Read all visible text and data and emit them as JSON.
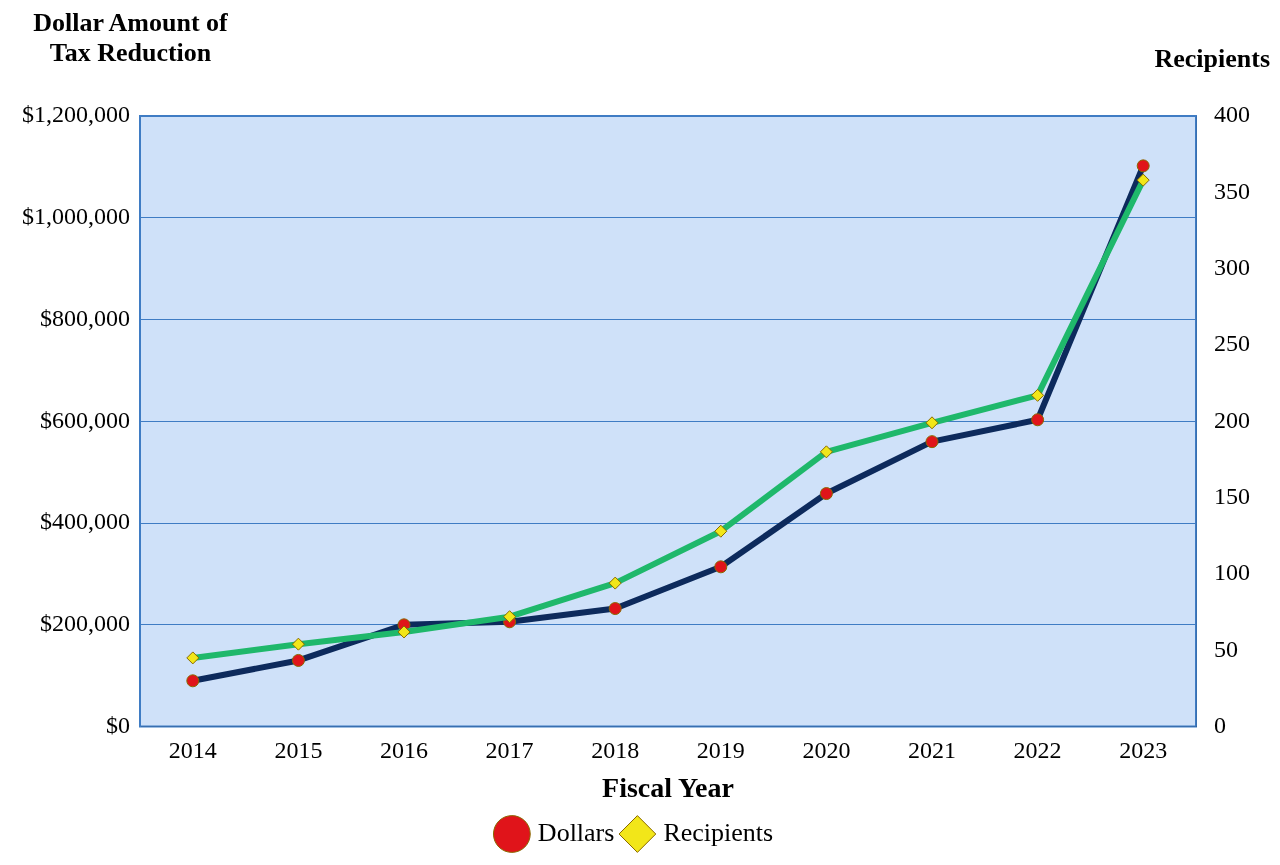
{
  "chart_data": {
    "type": "line",
    "xlabel": "Fiscal Year",
    "ylabel": "Dollar Amount of Tax Reduction",
    "y2label": "Recipients",
    "categories": [
      "2014",
      "2015",
      "2016",
      "2017",
      "2018",
      "2019",
      "2020",
      "2021",
      "2022",
      "2023"
    ],
    "series": [
      {
        "name": "Dollars",
        "color": "#0d2a5c",
        "marker": "circle",
        "values": [
          90000,
          130000,
          200000,
          206000,
          232000,
          314000,
          458000,
          560000,
          603000,
          1102000
        ]
      },
      {
        "name": "Recipients",
        "color": "#1fb86b",
        "marker": "diamond",
        "axis": "y2",
        "values": [
          45,
          54,
          62,
          72,
          94,
          128,
          180,
          199,
          217,
          358
        ]
      }
    ],
    "ylim": [
      0,
      1200000
    ],
    "yticks": [
      {
        "value": 0,
        "label": "$0"
      },
      {
        "value": 200000,
        "label": "$200,000"
      },
      {
        "value": 400000,
        "label": "$400,000"
      },
      {
        "value": 600000,
        "label": "$600,000"
      },
      {
        "value": 800000,
        "label": "$800,000"
      },
      {
        "value": 1000000,
        "label": "$1,000,000"
      },
      {
        "value": 1200000,
        "label": "$1,200,000"
      }
    ],
    "y2lim": [
      0,
      400
    ],
    "y2ticks": [
      0,
      50,
      100,
      150,
      200,
      250,
      300,
      350,
      400
    ],
    "grid": "y",
    "legend": "bottom"
  }
}
